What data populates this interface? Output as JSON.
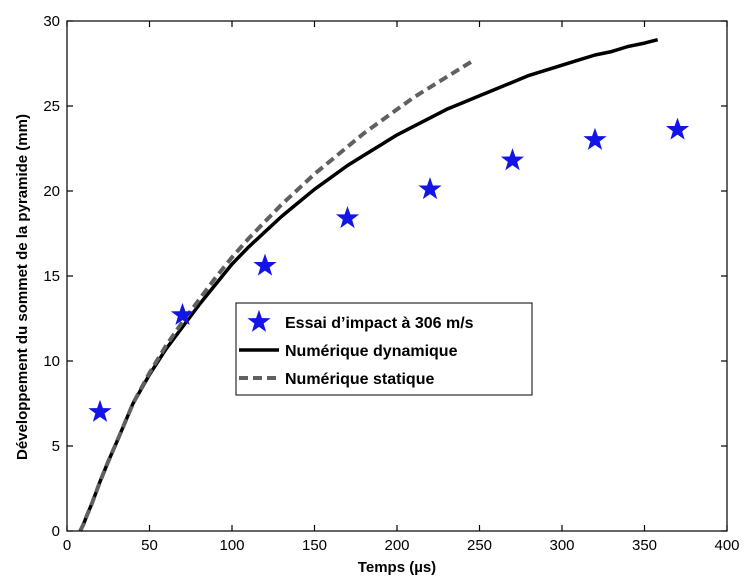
{
  "chart_data": {
    "type": "line",
    "title": "",
    "xlabel": "Temps (µs)",
    "ylabel": "Développement du sommet de la pyramide (mm)",
    "xlim": [
      0,
      400
    ],
    "ylim": [
      0,
      30
    ],
    "xticks": [
      0,
      50,
      100,
      150,
      200,
      250,
      300,
      350,
      400
    ],
    "yticks": [
      0,
      5,
      10,
      15,
      20,
      25,
      30
    ],
    "grid": false,
    "legend_position": "center",
    "series": [
      {
        "name": "Essai d’impact à 306 m/s",
        "style": "star-marker",
        "color": "#1414e6",
        "x": [
          20,
          70,
          120,
          170,
          220,
          270,
          320,
          370
        ],
        "y": [
          7.0,
          12.7,
          15.6,
          18.4,
          20.1,
          21.8,
          23.0,
          23.6
        ]
      },
      {
        "name": "Numérique dynamique",
        "style": "solid",
        "color": "#000000",
        "x": [
          8,
          10,
          12,
          15,
          20,
          25,
          30,
          40,
          50,
          60,
          70,
          80,
          90,
          100,
          110,
          120,
          130,
          140,
          150,
          160,
          170,
          180,
          190,
          200,
          210,
          220,
          230,
          240,
          250,
          260,
          270,
          280,
          290,
          300,
          310,
          320,
          330,
          340,
          350,
          358
        ],
        "y": [
          0,
          0.4,
          0.9,
          1.6,
          2.9,
          4.1,
          5.2,
          7.5,
          9.2,
          10.7,
          12.0,
          13.3,
          14.5,
          15.7,
          16.7,
          17.6,
          18.5,
          19.3,
          20.1,
          20.8,
          21.5,
          22.1,
          22.7,
          23.3,
          23.8,
          24.3,
          24.8,
          25.2,
          25.6,
          26.0,
          26.4,
          26.8,
          27.1,
          27.4,
          27.7,
          28.0,
          28.2,
          28.5,
          28.7,
          28.9
        ]
      },
      {
        "name": "Numérique statique",
        "style": "dashed",
        "color": "#606060",
        "x": [
          8,
          10,
          12,
          15,
          20,
          25,
          30,
          40,
          50,
          60,
          70,
          80,
          90,
          100,
          110,
          120,
          130,
          140,
          150,
          160,
          170,
          180,
          190,
          200,
          210,
          220,
          230,
          240,
          245
        ],
        "y": [
          0,
          0.4,
          0.9,
          1.6,
          2.9,
          4.1,
          5.2,
          7.5,
          9.3,
          10.9,
          12.3,
          13.6,
          14.9,
          16.1,
          17.2,
          18.2,
          19.2,
          20.1,
          21.0,
          21.8,
          22.6,
          23.4,
          24.1,
          24.8,
          25.5,
          26.1,
          26.7,
          27.3,
          27.6
        ]
      }
    ]
  }
}
